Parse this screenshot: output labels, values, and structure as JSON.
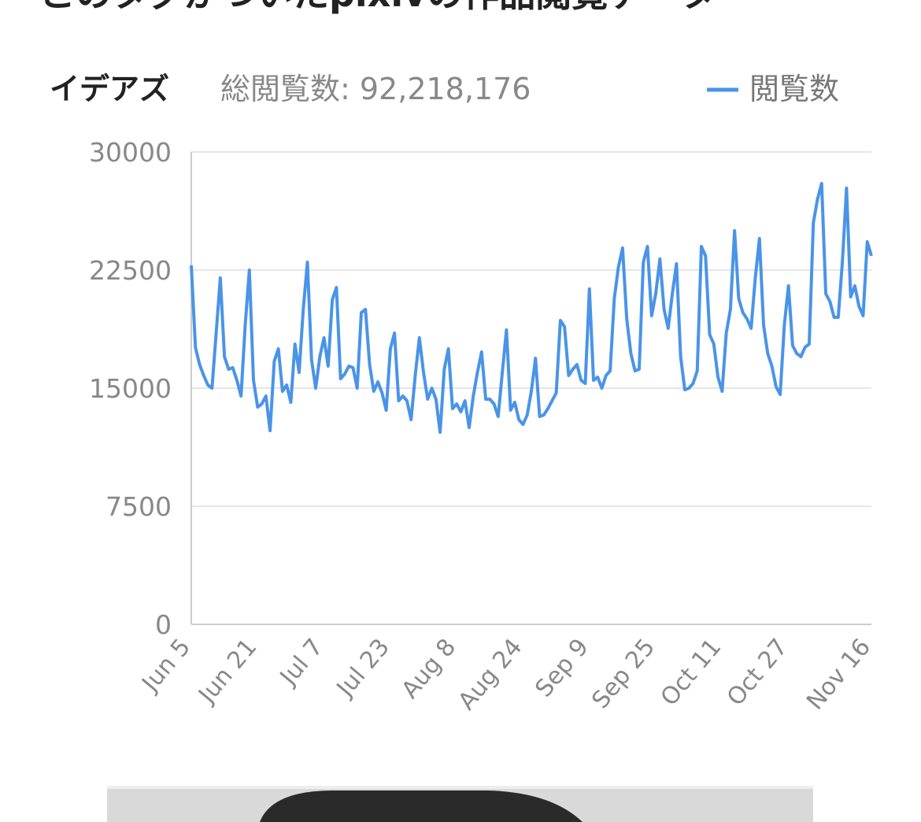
{
  "header": {
    "title": "このタグがついたpixivの作品閲覧データ"
  },
  "tag": "イデアズ",
  "total_label": "総閲覧数: 92,218,176",
  "chart_data": {
    "type": "line",
    "categories": [
      "Jun 5",
      null,
      null,
      null,
      null,
      null,
      null,
      null,
      null,
      null,
      null,
      null,
      null,
      null,
      null,
      null,
      "Jun 21",
      null,
      null,
      null,
      null,
      null,
      null,
      null,
      null,
      null,
      null,
      null,
      null,
      null,
      null,
      null,
      "Jul 7",
      null,
      null,
      null,
      null,
      null,
      null,
      null,
      null,
      null,
      null,
      null,
      null,
      null,
      null,
      null,
      "Jul 23",
      null,
      null,
      null,
      null,
      null,
      null,
      null,
      null,
      null,
      null,
      null,
      null,
      null,
      null,
      null,
      "Aug 8",
      null,
      null,
      null,
      null,
      null,
      null,
      null,
      null,
      null,
      null,
      null,
      null,
      null,
      null,
      null,
      "Aug 24",
      null,
      null,
      null,
      null,
      null,
      null,
      null,
      null,
      null,
      null,
      null,
      null,
      null,
      null,
      null,
      "Sep 9",
      null,
      null,
      null,
      null,
      null,
      null,
      null,
      null,
      null,
      null,
      null,
      null,
      null,
      null,
      null,
      "Sep 25",
      null,
      null,
      null,
      null,
      null,
      null,
      null,
      null,
      null,
      null,
      null,
      null,
      null,
      null,
      null,
      "Oct 11",
      null,
      null,
      null,
      null,
      null,
      null,
      null,
      null,
      null,
      null,
      null,
      null,
      null,
      null,
      null,
      "Oct 27",
      null,
      null,
      null,
      null,
      null,
      null,
      null,
      null,
      null,
      null,
      null,
      null,
      null,
      null,
      null,
      null,
      null,
      null,
      null,
      "Nov 16"
    ],
    "series": [
      {
        "name": "閲覧数",
        "color": "#4a94e8",
        "values": [
          22800,
          17600,
          16500,
          15800,
          15200,
          15000,
          18500,
          22000,
          17000,
          16200,
          16300,
          15500,
          14500,
          19000,
          22500,
          15500,
          13800,
          14000,
          14500,
          12300,
          16700,
          17500,
          14800,
          15200,
          14100,
          17800,
          16000,
          20000,
          23000,
          16800,
          15000,
          17000,
          18200,
          16400,
          20600,
          21400,
          15600,
          15900,
          16400,
          16300,
          15000,
          19800,
          20000,
          16500,
          14800,
          15400,
          14700,
          13600,
          17500,
          18500,
          14200,
          14500,
          14200,
          13000,
          15800,
          18200,
          16000,
          14300,
          15000,
          14300,
          12200,
          16200,
          17500,
          13700,
          14000,
          13500,
          14200,
          12500,
          14500,
          16000,
          17300,
          14300,
          14300,
          14000,
          13200,
          16000,
          18700,
          13600,
          14100,
          13000,
          12700,
          13300,
          14800,
          16900,
          13200,
          13300,
          13700,
          14200,
          14700,
          19300,
          18900,
          15800,
          16200,
          16500,
          15500,
          15300,
          21300,
          15500,
          15700,
          15000,
          15800,
          16100,
          20700,
          22700,
          23900,
          19400,
          17200,
          16100,
          16200,
          23000,
          24000,
          19600,
          21000,
          23200,
          20000,
          18800,
          21000,
          22900,
          17000,
          14900,
          15000,
          15300,
          16100,
          24000,
          23400,
          18400,
          17800,
          15700,
          14800,
          18500,
          20000,
          25000,
          20700,
          19800,
          19400,
          18800,
          22000,
          24500,
          19000,
          17200,
          16400,
          15100,
          14600,
          19000,
          21500,
          17700,
          17200,
          17000,
          17600,
          17800,
          25500,
          27000,
          28000,
          21000,
          20500,
          19500,
          19500,
          23000,
          27700,
          20800,
          21500,
          20200,
          19600,
          24300,
          23400
        ]
      }
    ],
    "ylim": [
      0,
      30000
    ],
    "yticks": [
      0,
      7500,
      15000,
      22500,
      30000
    ],
    "grid": true
  }
}
